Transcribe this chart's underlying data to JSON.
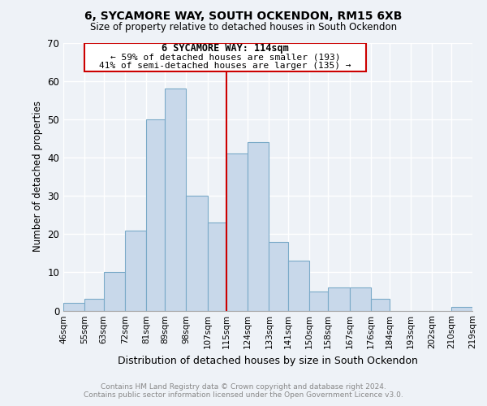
{
  "title": "6, SYCAMORE WAY, SOUTH OCKENDON, RM15 6XB",
  "subtitle": "Size of property relative to detached houses in South Ockendon",
  "xlabel": "Distribution of detached houses by size in South Ockendon",
  "ylabel": "Number of detached properties",
  "bin_labels": [
    "46sqm",
    "55sqm",
    "63sqm",
    "72sqm",
    "81sqm",
    "89sqm",
    "98sqm",
    "107sqm",
    "115sqm",
    "124sqm",
    "133sqm",
    "141sqm",
    "150sqm",
    "158sqm",
    "167sqm",
    "176sqm",
    "184sqm",
    "193sqm",
    "202sqm",
    "210sqm",
    "219sqm"
  ],
  "bin_edges": [
    46,
    55,
    63,
    72,
    81,
    89,
    98,
    107,
    115,
    124,
    133,
    141,
    150,
    158,
    167,
    176,
    184,
    193,
    202,
    210,
    219
  ],
  "bar_heights": [
    2,
    3,
    10,
    21,
    50,
    58,
    30,
    23,
    41,
    44,
    18,
    13,
    5,
    6,
    6,
    3,
    0,
    0,
    0,
    1
  ],
  "bar_color": "#c8d8ea",
  "bar_edgecolor": "#7aaac8",
  "reference_line_x": 115,
  "reference_line_color": "#cc0000",
  "annotation_title": "6 SYCAMORE WAY: 114sqm",
  "annotation_line1": "← 59% of detached houses are smaller (193)",
  "annotation_line2": "41% of semi-detached houses are larger (135) →",
  "annotation_box_color": "#ffffff",
  "annotation_box_edgecolor": "#cc0000",
  "ylim": [
    0,
    70
  ],
  "yticks": [
    0,
    10,
    20,
    30,
    40,
    50,
    60,
    70
  ],
  "background_color": "#eef2f7",
  "grid_color": "#ffffff",
  "footer_line1": "Contains HM Land Registry data © Crown copyright and database right 2024.",
  "footer_line2": "Contains public sector information licensed under the Open Government Licence v3.0.",
  "footer_color": "#888888"
}
